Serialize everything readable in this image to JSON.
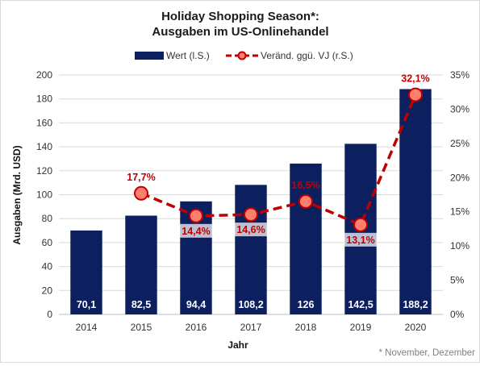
{
  "chart_data": {
    "type": "bar",
    "title": "Holiday Shopping Season*:",
    "subtitle": "Ausgaben im US-Onlinehandel",
    "xlabel": "Jahr",
    "ylabel": "Ausgaben (Mrd. USD)",
    "categories": [
      "2014",
      "2015",
      "2016",
      "2017",
      "2018",
      "2019",
      "2020"
    ],
    "series": [
      {
        "name": "Wert (l.S.)",
        "type": "bar",
        "axis": "left",
        "color": "#0c1f5e",
        "values": [
          70.1,
          82.5,
          94.4,
          108.2,
          126,
          142.5,
          188.2
        ],
        "labels": [
          "70,1",
          "82,5",
          "94,4",
          "108,2",
          "126",
          "142,5",
          "188,2"
        ]
      },
      {
        "name": "Veränd. ggü. VJ (r.S.)",
        "type": "line",
        "axis": "right",
        "color": "#c00000",
        "marker_fill": "#ff7f6e",
        "values": [
          null,
          17.7,
          14.4,
          14.6,
          16.5,
          13.1,
          32.1
        ],
        "labels": [
          null,
          "17,7%",
          "14,4%",
          "14,6%",
          "16,5%",
          "13,1%",
          "32,1%"
        ]
      }
    ],
    "ylim": [
      0,
      200
    ],
    "yticks": [
      "0",
      "20",
      "40",
      "60",
      "80",
      "100",
      "120",
      "140",
      "160",
      "180",
      "200"
    ],
    "y2lim": [
      0,
      35
    ],
    "y2ticks": [
      "0%",
      "5%",
      "10%",
      "15%",
      "20%",
      "25%",
      "30%",
      "35%"
    ],
    "grid": true,
    "legend_position": "top",
    "footnote": "* November, Dezember"
  }
}
